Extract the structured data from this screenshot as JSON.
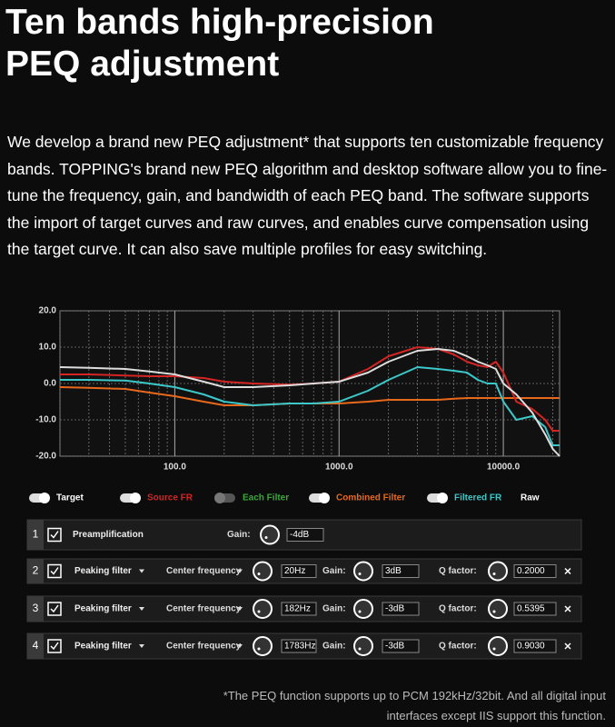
{
  "header": {
    "title_lines": [
      "Ten bands high-precision",
      "PEQ adjustment"
    ]
  },
  "body": {
    "paragraph": "We develop a brand new PEQ adjustment* that supports ten customizable frequency bands. TOPPING's brand new PEQ algorithm and desktop software allow you to fine-tune the frequency, gain, and bandwidth of each PEQ band. The software supports the import of target curves and raw curves, and enables curve compensation using the target curve. It can also save multiple profiles for easy switching."
  },
  "chart_data": {
    "type": "line",
    "log_x": true,
    "grid": true,
    "x": [
      20,
      30,
      50,
      70,
      100,
      150,
      200,
      300,
      500,
      700,
      1000,
      1500,
      2000,
      3000,
      4000,
      5000,
      6000,
      7000,
      8000,
      9000,
      10000,
      12000,
      15000,
      18000,
      20000,
      22000
    ],
    "xlim": [
      20,
      22000
    ],
    "xticks": [
      {
        "value": 100,
        "label": "100.0"
      },
      {
        "value": 1000,
        "label": "1000.0"
      },
      {
        "value": 10000,
        "label": "10000.0"
      }
    ],
    "xminor_ticks": [
      20,
      30,
      40,
      50,
      60,
      70,
      80,
      90,
      200,
      300,
      400,
      500,
      600,
      700,
      800,
      900,
      2000,
      3000,
      4000,
      5000,
      6000,
      7000,
      8000,
      9000,
      20000
    ],
    "ylim": [
      -20,
      20
    ],
    "yticks": [
      {
        "value": 20,
        "label": "20.0"
      },
      {
        "value": 10,
        "label": "10.0"
      },
      {
        "value": 0,
        "label": "0.0"
      },
      {
        "value": -10,
        "label": "-10.0"
      },
      {
        "value": -20,
        "label": "-20.0"
      }
    ],
    "series": [
      {
        "name": "Combined Filter",
        "color": "#e8681c",
        "values": [
          -1,
          -1.2,
          -1.5,
          -2.5,
          -3.5,
          -5,
          -6,
          -6,
          -5.5,
          -5.5,
          -5.5,
          -5,
          -4.5,
          -4.5,
          -4.5,
          -4.2,
          -4,
          -4,
          -4,
          -4,
          -4,
          -4,
          -4,
          -4,
          -4,
          -4
        ]
      },
      {
        "name": "Filtered FR",
        "color": "#3cc8c8",
        "values": [
          1,
          1,
          0.8,
          0,
          -1,
          -3,
          -5,
          -6,
          -5.5,
          -5.5,
          -5,
          -2,
          1,
          4.5,
          4,
          3.5,
          3,
          1,
          0,
          0,
          -5,
          -10,
          -9,
          -12,
          -17,
          -17
        ]
      },
      {
        "name": "Source FR",
        "color": "#d42424",
        "values": [
          2.5,
          2.5,
          2.2,
          2,
          2,
          1.5,
          0.5,
          0,
          -0.3,
          0,
          0.5,
          4,
          7.5,
          10,
          9.5,
          8,
          6,
          5,
          4.5,
          6,
          3,
          -5,
          -7,
          -10,
          -13,
          -13
        ]
      },
      {
        "name": "Target",
        "color": "#dddddd",
        "values": [
          4.5,
          4.3,
          4,
          3.3,
          2.5,
          0.5,
          -1,
          -1,
          -0.5,
          0,
          0.5,
          3,
          6,
          9,
          9.5,
          9,
          7.5,
          6,
          5,
          4,
          0,
          -3,
          -8,
          -14,
          -18,
          -20
        ]
      }
    ],
    "legend_items": [
      {
        "name": "Target",
        "color": "#ffffff",
        "on": true,
        "has_toggle": true
      },
      {
        "name": "Source FR",
        "color": "#d42424",
        "on": true,
        "has_toggle": true
      },
      {
        "name": "Each Filter",
        "color": "#3ca83c",
        "on": false,
        "has_toggle": true
      },
      {
        "name": "Combined Filter",
        "color": "#e8681c",
        "on": true,
        "has_toggle": true
      },
      {
        "name": "Filtered FR",
        "color": "#3cc8c8",
        "on": true,
        "has_toggle": true
      },
      {
        "name": "Raw",
        "color": "#ffffff",
        "on": false,
        "has_toggle": false
      }
    ]
  },
  "filters": [
    {
      "index": "1",
      "type": "Preamplification",
      "gain_label": "Gain:",
      "gain": "-4dB"
    },
    {
      "index": "2",
      "type": "Peaking filter",
      "freq_label": "Center frequency",
      "freq": "20Hz",
      "gain_label": "Gain:",
      "gain": "3dB",
      "q_label": "Q factor:",
      "q": "0.2000"
    },
    {
      "index": "3",
      "type": "Peaking filter",
      "freq_label": "Center frequency",
      "freq": "182Hz",
      "gain_label": "Gain:",
      "gain": "-3dB",
      "q_label": "Q factor:",
      "q": "0.5395"
    },
    {
      "index": "4",
      "type": "Peaking filter",
      "freq_label": "Center frequency",
      "freq": "1783Hz",
      "gain_label": "Gain:",
      "gain": "-3dB",
      "q_label": "Q factor:",
      "q": "0.9030"
    }
  ],
  "footnote_lines": [
    "*The PEQ function supports up to PCM 192kHz/32bit. And all digital input",
    "interfaces except IIS support this function."
  ]
}
